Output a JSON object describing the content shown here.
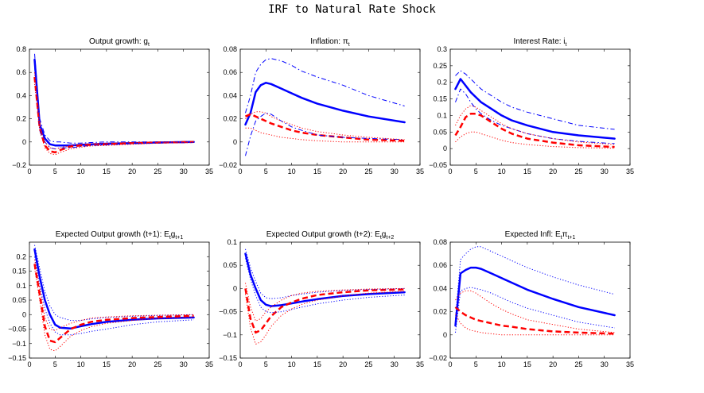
{
  "figure_title": "IRF to Natural Rate Shock",
  "chart_data": [
    {
      "type": "line",
      "title": "Output growth: g",
      "title_sub": "t",
      "xlim": [
        0,
        35
      ],
      "ylim": [
        -0.2,
        0.8
      ],
      "xticks": [
        0,
        5,
        10,
        15,
        20,
        25,
        30,
        35
      ],
      "yticks": [
        -0.2,
        0,
        0.2,
        0.4,
        0.6,
        0.8
      ],
      "yticklabels": [
        "−0.2",
        "0",
        "0.2",
        "0.4",
        "0.6",
        "0.8"
      ],
      "x": [
        1,
        2,
        3,
        4,
        5,
        6,
        8,
        10,
        12,
        15,
        20,
        25,
        32
      ],
      "series": [
        {
          "color": "#0000ff",
          "style": "solid",
          "width": 2.5,
          "values": [
            0.71,
            0.15,
            0.03,
            -0.02,
            -0.03,
            -0.03,
            -0.03,
            -0.025,
            -0.02,
            -0.015,
            -0.01,
            -0.005,
            0.0
          ]
        },
        {
          "color": "#ff0000",
          "style": "dashed",
          "width": 2.5,
          "values": [
            0.56,
            0.12,
            -0.03,
            -0.08,
            -0.09,
            -0.07,
            -0.04,
            -0.03,
            -0.025,
            -0.02,
            -0.01,
            -0.005,
            0.0
          ]
        },
        {
          "color": "#0000ff",
          "style": "dashdot",
          "width": 1,
          "values": [
            0.76,
            0.2,
            0.06,
            0.01,
            0.0,
            0.0,
            -0.01,
            -0.01,
            -0.005,
            0.0,
            0.0,
            0.0,
            0.0
          ]
        },
        {
          "color": "#0000ff",
          "style": "dashdot",
          "width": 1,
          "values": [
            0.65,
            0.1,
            0.0,
            -0.05,
            -0.06,
            -0.05,
            -0.05,
            -0.04,
            -0.03,
            -0.025,
            -0.015,
            -0.01,
            -0.005
          ]
        },
        {
          "color": "#ff0000",
          "style": "dotted",
          "width": 1,
          "values": [
            0.6,
            0.14,
            0.0,
            -0.05,
            -0.06,
            -0.05,
            -0.03,
            -0.02,
            -0.015,
            -0.01,
            -0.005,
            0.0,
            0.0
          ]
        },
        {
          "color": "#ff0000",
          "style": "dotted",
          "width": 1,
          "values": [
            0.5,
            0.1,
            -0.05,
            -0.1,
            -0.11,
            -0.09,
            -0.06,
            -0.045,
            -0.035,
            -0.03,
            -0.02,
            -0.01,
            -0.005
          ]
        }
      ]
    },
    {
      "type": "line",
      "title": "Inflation: π",
      "title_sub": "t",
      "xlim": [
        0,
        35
      ],
      "ylim": [
        -0.02,
        0.08
      ],
      "xticks": [
        0,
        5,
        10,
        15,
        20,
        25,
        30,
        35
      ],
      "yticks": [
        -0.02,
        0,
        0.02,
        0.04,
        0.06,
        0.08
      ],
      "yticklabels": [
        "−0.02",
        "0",
        "0.02",
        "0.04",
        "0.06",
        "0.08"
      ],
      "x": [
        1,
        2,
        3,
        4,
        5,
        6,
        8,
        10,
        12,
        15,
        20,
        25,
        32
      ],
      "series": [
        {
          "color": "#0000ff",
          "style": "solid",
          "width": 2.5,
          "values": [
            0.015,
            0.025,
            0.043,
            0.049,
            0.051,
            0.05,
            0.046,
            0.042,
            0.038,
            0.033,
            0.027,
            0.022,
            0.017
          ]
        },
        {
          "color": "#ff0000",
          "style": "dashed",
          "width": 2.5,
          "values": [
            0.022,
            0.024,
            0.022,
            0.02,
            0.018,
            0.016,
            0.013,
            0.01,
            0.008,
            0.006,
            0.004,
            0.002,
            0.001
          ]
        },
        {
          "color": "#0000ff",
          "style": "dashdot",
          "width": 1,
          "values": [
            0.025,
            0.04,
            0.06,
            0.067,
            0.071,
            0.072,
            0.07,
            0.066,
            0.061,
            0.056,
            0.049,
            0.04,
            0.031
          ]
        },
        {
          "color": "#0000ff",
          "style": "dashdot",
          "width": 1,
          "values": [
            -0.012,
            0.005,
            0.018,
            0.022,
            0.025,
            0.024,
            0.018,
            0.013,
            0.01,
            0.006,
            0.004,
            0.003,
            0.002
          ]
        },
        {
          "color": "#ff0000",
          "style": "dotted",
          "width": 1,
          "values": [
            0.02,
            0.024,
            0.026,
            0.026,
            0.025,
            0.022,
            0.018,
            0.015,
            0.012,
            0.009,
            0.006,
            0.004,
            0.002
          ]
        },
        {
          "color": "#ff0000",
          "style": "dotted",
          "width": 1,
          "values": [
            0.012,
            0.012,
            0.01,
            0.008,
            0.007,
            0.006,
            0.004,
            0.003,
            0.002,
            0.001,
            0.0,
            0.0,
            0.0
          ]
        }
      ]
    },
    {
      "type": "line",
      "title": "Interest Rate: i",
      "title_sub": "t",
      "xlim": [
        0,
        35
      ],
      "ylim": [
        -0.05,
        0.3
      ],
      "xticks": [
        0,
        5,
        10,
        15,
        20,
        25,
        30,
        35
      ],
      "yticks": [
        -0.05,
        0,
        0.05,
        0.1,
        0.15,
        0.2,
        0.25,
        0.3
      ],
      "yticklabels": [
        "−0.05",
        "0",
        "0.05",
        "0.1",
        "0.15",
        "0.2",
        "0.25",
        "0.3"
      ],
      "x": [
        1,
        2,
        3,
        4,
        5,
        6,
        8,
        10,
        12,
        15,
        20,
        25,
        32
      ],
      "series": [
        {
          "color": "#0000ff",
          "style": "solid",
          "width": 2.5,
          "values": [
            0.18,
            0.21,
            0.19,
            0.17,
            0.155,
            0.14,
            0.12,
            0.1,
            0.085,
            0.07,
            0.05,
            0.04,
            0.03
          ]
        },
        {
          "color": "#ff0000",
          "style": "dashed",
          "width": 2.5,
          "values": [
            0.04,
            0.065,
            0.095,
            0.105,
            0.105,
            0.1,
            0.08,
            0.06,
            0.045,
            0.03,
            0.018,
            0.01,
            0.005
          ]
        },
        {
          "color": "#0000ff",
          "style": "dashdot",
          "width": 1,
          "values": [
            0.22,
            0.235,
            0.225,
            0.21,
            0.195,
            0.18,
            0.16,
            0.14,
            0.125,
            0.11,
            0.09,
            0.07,
            0.058
          ]
        },
        {
          "color": "#0000ff",
          "style": "dashdot",
          "width": 1,
          "values": [
            0.14,
            0.18,
            0.165,
            0.14,
            0.12,
            0.105,
            0.085,
            0.07,
            0.06,
            0.045,
            0.03,
            0.022,
            0.015
          ]
        },
        {
          "color": "#ff0000",
          "style": "dotted",
          "width": 1,
          "values": [
            0.07,
            0.1,
            0.12,
            0.13,
            0.125,
            0.115,
            0.095,
            0.075,
            0.06,
            0.045,
            0.03,
            0.02,
            0.012
          ]
        },
        {
          "color": "#ff0000",
          "style": "dotted",
          "width": 1,
          "values": [
            0.02,
            0.035,
            0.045,
            0.05,
            0.05,
            0.045,
            0.035,
            0.025,
            0.018,
            0.012,
            0.006,
            0.003,
            0.001
          ]
        }
      ]
    },
    {
      "type": "line",
      "title": "Expected Output growth (t+1): E",
      "title_sub": "t",
      "title_rest": "g",
      "title_sub2": "t+1",
      "xlim": [
        0,
        35
      ],
      "ylim": [
        -0.15,
        0.25
      ],
      "xticks": [
        0,
        5,
        10,
        15,
        20,
        25,
        30,
        35
      ],
      "yticks": [
        -0.15,
        -0.1,
        -0.05,
        0,
        0.05,
        0.1,
        0.15,
        0.2
      ],
      "yticklabels": [
        "−0.15",
        "−0.1",
        "−0.05",
        "0",
        "0.05",
        "0.1",
        "0.15",
        "0.2"
      ],
      "x": [
        1,
        2,
        3,
        4,
        5,
        6,
        8,
        10,
        12,
        15,
        20,
        25,
        32
      ],
      "series": [
        {
          "color": "#0000ff",
          "style": "solid",
          "width": 2.5,
          "values": [
            0.225,
            0.13,
            0.05,
            0.0,
            -0.035,
            -0.045,
            -0.048,
            -0.04,
            -0.033,
            -0.025,
            -0.018,
            -0.013,
            -0.01
          ]
        },
        {
          "color": "#ff0000",
          "style": "dashed",
          "width": 2.5,
          "values": [
            0.175,
            0.07,
            -0.04,
            -0.09,
            -0.095,
            -0.08,
            -0.05,
            -0.035,
            -0.025,
            -0.018,
            -0.012,
            -0.008,
            -0.004
          ]
        },
        {
          "color": "#0000ff",
          "style": "dotted",
          "width": 1,
          "values": [
            0.24,
            0.16,
            0.08,
            0.03,
            0.0,
            -0.01,
            -0.02,
            -0.02,
            -0.015,
            -0.01,
            -0.006,
            -0.003,
            0.0
          ]
        },
        {
          "color": "#0000ff",
          "style": "dotted",
          "width": 1,
          "values": [
            0.2,
            0.1,
            0.02,
            -0.03,
            -0.06,
            -0.07,
            -0.07,
            -0.065,
            -0.058,
            -0.05,
            -0.035,
            -0.025,
            -0.018
          ]
        },
        {
          "color": "#ff0000",
          "style": "dotted",
          "width": 1,
          "values": [
            0.19,
            0.09,
            -0.01,
            -0.05,
            -0.055,
            -0.045,
            -0.03,
            -0.02,
            -0.012,
            -0.008,
            -0.004,
            -0.002,
            0.0
          ]
        },
        {
          "color": "#ff0000",
          "style": "dotted",
          "width": 1,
          "values": [
            0.16,
            0.05,
            -0.07,
            -0.12,
            -0.125,
            -0.11,
            -0.075,
            -0.055,
            -0.042,
            -0.03,
            -0.02,
            -0.013,
            -0.008
          ]
        }
      ]
    },
    {
      "type": "line",
      "title": "Expected Output growth (t+2): E",
      "title_sub": "t",
      "title_rest": "g",
      "title_sub2": "t+2",
      "xlim": [
        0,
        35
      ],
      "ylim": [
        -0.15,
        0.1
      ],
      "xticks": [
        0,
        5,
        10,
        15,
        20,
        25,
        30,
        35
      ],
      "yticks": [
        -0.15,
        -0.1,
        -0.05,
        0,
        0.05,
        0.1
      ],
      "yticklabels": [
        "−0.15",
        "−0.1",
        "−0.05",
        "0",
        "0.05",
        "0.1"
      ],
      "x": [
        1,
        2,
        3,
        4,
        5,
        6,
        8,
        10,
        12,
        15,
        20,
        25,
        32
      ],
      "series": [
        {
          "color": "#0000ff",
          "style": "solid",
          "width": 2.5,
          "values": [
            0.075,
            0.03,
            0.0,
            -0.025,
            -0.035,
            -0.038,
            -0.036,
            -0.032,
            -0.028,
            -0.023,
            -0.016,
            -0.012,
            -0.008
          ]
        },
        {
          "color": "#ff0000",
          "style": "dashed",
          "width": 2.5,
          "values": [
            0.0,
            -0.065,
            -0.095,
            -0.09,
            -0.075,
            -0.06,
            -0.04,
            -0.03,
            -0.022,
            -0.014,
            -0.008,
            -0.004,
            -0.002
          ]
        },
        {
          "color": "#0000ff",
          "style": "dotted",
          "width": 1,
          "values": [
            0.085,
            0.045,
            0.015,
            -0.01,
            -0.02,
            -0.022,
            -0.02,
            -0.015,
            -0.012,
            -0.008,
            -0.004,
            -0.002,
            0.0
          ]
        },
        {
          "color": "#0000ff",
          "style": "dotted",
          "width": 1,
          "values": [
            0.065,
            0.02,
            -0.015,
            -0.04,
            -0.05,
            -0.052,
            -0.05,
            -0.045,
            -0.04,
            -0.033,
            -0.025,
            -0.019,
            -0.014
          ]
        },
        {
          "color": "#ff0000",
          "style": "dotted",
          "width": 1,
          "values": [
            0.012,
            -0.04,
            -0.07,
            -0.065,
            -0.05,
            -0.04,
            -0.025,
            -0.015,
            -0.01,
            -0.006,
            -0.003,
            -0.001,
            0.0
          ]
        },
        {
          "color": "#ff0000",
          "style": "dotted",
          "width": 1,
          "values": [
            -0.012,
            -0.085,
            -0.12,
            -0.115,
            -0.1,
            -0.082,
            -0.058,
            -0.044,
            -0.034,
            -0.025,
            -0.016,
            -0.01,
            -0.006
          ]
        }
      ]
    },
    {
      "type": "line",
      "title": "Expected Infl: E",
      "title_sub": "t",
      "title_rest": "π",
      "title_sub2": "t+1",
      "xlim": [
        0,
        35
      ],
      "ylim": [
        -0.02,
        0.08
      ],
      "xticks": [
        0,
        5,
        10,
        15,
        20,
        25,
        30,
        35
      ],
      "yticks": [
        -0.02,
        0,
        0.02,
        0.04,
        0.06,
        0.08
      ],
      "yticklabels": [
        "−0.02",
        "0",
        "0.02",
        "0.04",
        "0.06",
        "0.08"
      ],
      "x": [
        1,
        2,
        3,
        4,
        5,
        6,
        8,
        10,
        12,
        15,
        20,
        25,
        32
      ],
      "series": [
        {
          "color": "#0000ff",
          "style": "solid",
          "width": 2.5,
          "values": [
            0.008,
            0.053,
            0.056,
            0.058,
            0.058,
            0.057,
            0.053,
            0.049,
            0.045,
            0.039,
            0.031,
            0.024,
            0.017
          ]
        },
        {
          "color": "#ff0000",
          "style": "dashed",
          "width": 2.5,
          "values": [
            0.024,
            0.02,
            0.017,
            0.015,
            0.013,
            0.012,
            0.01,
            0.008,
            0.007,
            0.005,
            0.003,
            0.002,
            0.001
          ]
        },
        {
          "color": "#0000ff",
          "style": "dotted",
          "width": 1,
          "values": [
            0.014,
            0.065,
            0.07,
            0.074,
            0.076,
            0.076,
            0.072,
            0.068,
            0.064,
            0.058,
            0.05,
            0.043,
            0.035
          ]
        },
        {
          "color": "#0000ff",
          "style": "dotted",
          "width": 1,
          "values": [
            0.002,
            0.038,
            0.04,
            0.041,
            0.04,
            0.039,
            0.036,
            0.032,
            0.028,
            0.023,
            0.017,
            0.011,
            0.006
          ]
        },
        {
          "color": "#ff0000",
          "style": "dotted",
          "width": 1,
          "values": [
            0.03,
            0.036,
            0.038,
            0.038,
            0.036,
            0.033,
            0.027,
            0.022,
            0.018,
            0.013,
            0.009,
            0.005,
            0.002
          ]
        },
        {
          "color": "#ff0000",
          "style": "dotted",
          "width": 1,
          "values": [
            0.018,
            0.01,
            0.006,
            0.004,
            0.003,
            0.002,
            0.001,
            0.0,
            0.0,
            0.0,
            0.0,
            0.0,
            0.0
          ]
        }
      ]
    }
  ]
}
